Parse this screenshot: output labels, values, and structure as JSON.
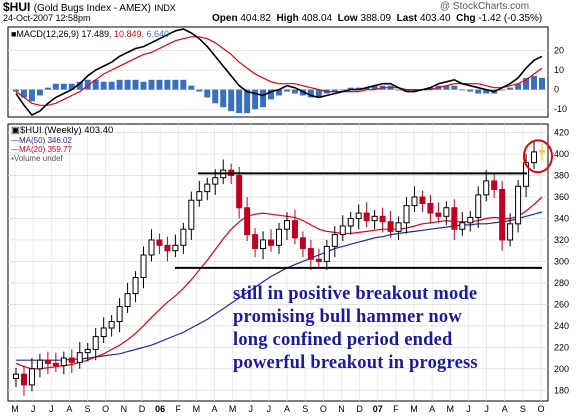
{
  "header": {
    "symbol": "$HUI",
    "symbol_desc": "(Gold Bugs Index - AMEX)",
    "exchange": "INDX",
    "datetime": "24-Oct-2007 12:58pm",
    "open_label": "Open",
    "open": "404.82",
    "high_label": "High",
    "high": "408.04",
    "low_label": "Low",
    "low": "388.09",
    "last_label": "Last",
    "last": "403.40",
    "chg_label": "Chg",
    "chg": "-1.42 (-0.35%)",
    "credit": "@ StockCharts.com"
  },
  "annotations": [
    "still in positive breakout mode",
    "promising bull hammer now",
    "long confined period ended",
    "powerful breakout in progress"
  ],
  "colors": {
    "annotation": "#1a1aa0",
    "ma20": "#e8000d",
    "ma50": "#1f2e9c",
    "macd_hist": "#3a6fc0",
    "candle_down": "#c00020",
    "circle": "#e8000d",
    "hammer": "#f2c500"
  },
  "chart_data": [
    {
      "type": "line",
      "name_panel": "MACD",
      "legend": [
        {
          "text": "MACD(12,26,9)",
          "value": "17.489",
          "color": "#000000"
        },
        {
          "text": "",
          "value": "10.849",
          "color": "#e8000d"
        },
        {
          "text": "",
          "value": "6.640",
          "color": "#3a6fc0"
        }
      ],
      "y_ticks": [
        -10,
        0,
        10,
        20
      ],
      "ylim": [
        -14,
        32
      ],
      "macd": [
        -2,
        -8,
        -13,
        -11,
        -7,
        -4,
        -2,
        0,
        3,
        7,
        10,
        12,
        14,
        17,
        19,
        21,
        22,
        24,
        26,
        28,
        30,
        31,
        29,
        26,
        22,
        17,
        12,
        7,
        2,
        -1,
        -2,
        -3,
        -1,
        0,
        2,
        1,
        -1,
        -3,
        -4,
        -3,
        -2,
        -1,
        0,
        0,
        1,
        2,
        3,
        3,
        1,
        -1,
        -1,
        0,
        1,
        3,
        4,
        5,
        3,
        2,
        1,
        0,
        -1,
        1,
        3,
        6,
        11,
        15,
        17
      ],
      "signal": [
        -1,
        -4,
        -7,
        -8,
        -8,
        -7,
        -5,
        -3,
        -1,
        2,
        5,
        8,
        10,
        12,
        14,
        16,
        18,
        19,
        21,
        23,
        25,
        26,
        27,
        27,
        26,
        24,
        21,
        18,
        14,
        11,
        8,
        6,
        4,
        3,
        3,
        3,
        2,
        1,
        0,
        -1,
        -1,
        -1,
        -1,
        -1,
        0,
        0,
        1,
        1,
        1,
        0,
        0,
        0,
        0,
        1,
        2,
        3,
        3,
        3,
        3,
        2,
        1,
        1,
        2,
        3,
        5,
        8,
        11
      ],
      "hist": [
        -1,
        -4,
        -6,
        -3,
        1,
        3,
        3,
        3,
        4,
        5,
        5,
        4,
        4,
        5,
        5,
        5,
        4,
        5,
        5,
        5,
        5,
        5,
        2,
        -1,
        -4,
        -7,
        -9,
        -11,
        -12,
        -12,
        -10,
        -9,
        -5,
        -3,
        -1,
        -2,
        -3,
        -4,
        -4,
        -2,
        -1,
        0,
        1,
        1,
        1,
        2,
        2,
        2,
        0,
        -1,
        -1,
        0,
        1,
        2,
        2,
        2,
        0,
        -1,
        -2,
        -2,
        -2,
        0,
        1,
        3,
        6,
        7,
        6
      ]
    },
    {
      "type": "candlestick",
      "name_panel": "$HUI (Weekly)",
      "legend": [
        {
          "text": "$HUI (Weekly)",
          "value": "403.40",
          "color": "#000000"
        },
        {
          "text": "MA(50)",
          "value": "346.02",
          "color": "#1f2e9c"
        },
        {
          "text": "MA(20)",
          "value": "359.77",
          "color": "#e8000d"
        },
        {
          "text": "Volume undef",
          "value": "",
          "color": "#555555"
        }
      ],
      "x_labels": [
        "M",
        "J",
        "J",
        "A",
        "S",
        "O",
        "N",
        "D",
        "06",
        "F",
        "M",
        "A",
        "M",
        "J",
        "J",
        "A",
        "S",
        "O",
        "N",
        "D",
        "07",
        "F",
        "M",
        "A",
        "M",
        "J",
        "J",
        "A",
        "S",
        "O"
      ],
      "bold_x_labels": [
        "06",
        "07"
      ],
      "y_ticks": [
        180,
        200,
        220,
        240,
        260,
        280,
        300,
        320,
        340,
        360,
        380,
        400,
        420
      ],
      "ylim": [
        170,
        428
      ],
      "resistance": 382,
      "support": 294,
      "close": [
        195,
        185,
        200,
        208,
        205,
        203,
        210,
        206,
        215,
        218,
        230,
        238,
        244,
        258,
        270,
        285,
        306,
        320,
        315,
        310,
        315,
        330,
        357,
        365,
        372,
        378,
        385,
        380,
        350,
        325,
        312,
        320,
        315,
        330,
        338,
        322,
        312,
        302,
        300,
        314,
        325,
        333,
        340,
        345,
        338,
        342,
        337,
        328,
        336,
        352,
        360,
        354,
        345,
        342,
        350,
        330,
        336,
        341,
        362,
        375,
        367,
        320,
        335,
        370,
        392,
        402,
        403
      ],
      "ma20": [
        205,
        202,
        200,
        200,
        201,
        202,
        203,
        204,
        206,
        208,
        211,
        214,
        218,
        222,
        227,
        233,
        240,
        248,
        255,
        262,
        268,
        275,
        283,
        292,
        301,
        311,
        321,
        330,
        337,
        342,
        344,
        345,
        344,
        343,
        342,
        341,
        338,
        334,
        330,
        328,
        327,
        326,
        326,
        327,
        328,
        329,
        330,
        330,
        330,
        331,
        333,
        335,
        336,
        337,
        338,
        337,
        337,
        337,
        338,
        340,
        341,
        340,
        340,
        342,
        347,
        353,
        360
      ],
      "ma50": [
        208,
        208,
        208,
        208,
        208,
        208,
        208,
        209,
        209,
        210,
        211,
        212,
        213,
        214,
        216,
        218,
        220,
        222,
        225,
        228,
        231,
        234,
        238,
        242,
        246,
        251,
        256,
        261,
        266,
        271,
        276,
        281,
        286,
        290,
        294,
        297,
        300,
        303,
        306,
        309,
        312,
        314,
        316,
        318,
        320,
        322,
        323,
        325,
        326,
        327,
        328,
        329,
        330,
        331,
        332,
        333,
        334,
        334,
        335,
        335,
        336,
        337,
        338,
        340,
        342,
        344,
        346
      ]
    }
  ]
}
